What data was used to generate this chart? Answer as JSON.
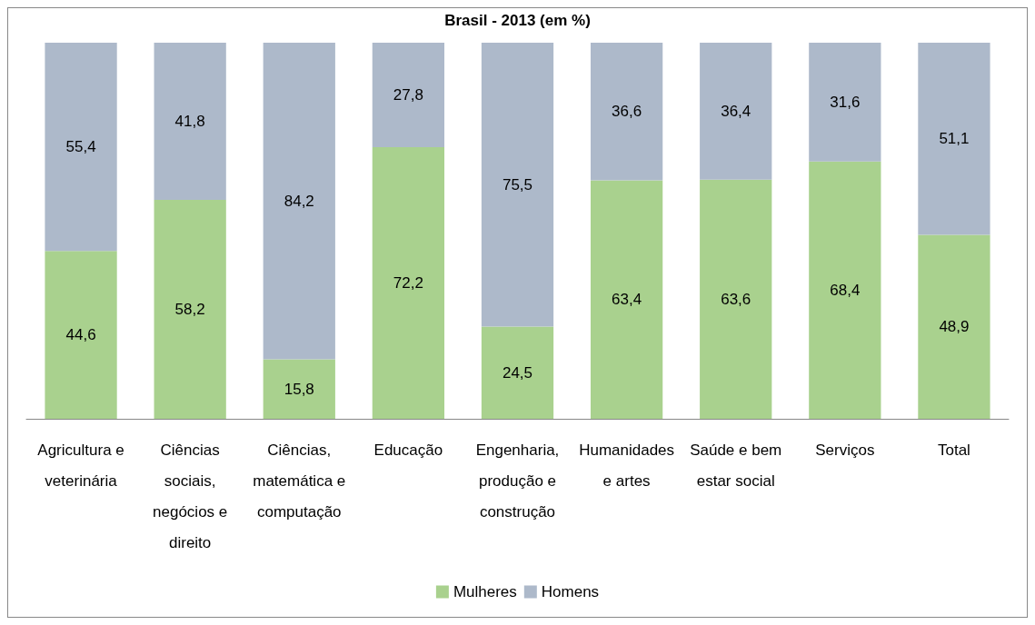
{
  "chart_data": {
    "type": "bar",
    "title": "Brasil - 2013 (em %)",
    "stacked": true,
    "legend": "bottom",
    "categories": [
      "Agricultura e veterinária",
      "Ciências sociais, negócios e direito",
      "Ciências, matemática e computação",
      "Educação",
      "Engenharia, produção e construção",
      "Humanidades e artes",
      "Saúde e bem estar social",
      "Serviços",
      "Total"
    ],
    "series": [
      {
        "name": "Mulheres",
        "color": "#a9d18e",
        "values": [
          44.6,
          58.2,
          15.8,
          72.2,
          24.5,
          63.4,
          63.6,
          68.4,
          48.9
        ],
        "value_labels": [
          "44,6",
          "58,2",
          "15,8",
          "72,2",
          "24,5",
          "63,4",
          "63,6",
          "68,4",
          "48,9"
        ]
      },
      {
        "name": "Homens",
        "color": "#adb9ca",
        "values": [
          55.4,
          41.8,
          84.2,
          27.8,
          75.5,
          36.6,
          36.4,
          31.6,
          51.1
        ],
        "value_labels": [
          "55,4",
          "41,8",
          "84,2",
          "27,8",
          "75,5",
          "36,6",
          "36,4",
          "31,6",
          "51,1"
        ]
      }
    ]
  }
}
